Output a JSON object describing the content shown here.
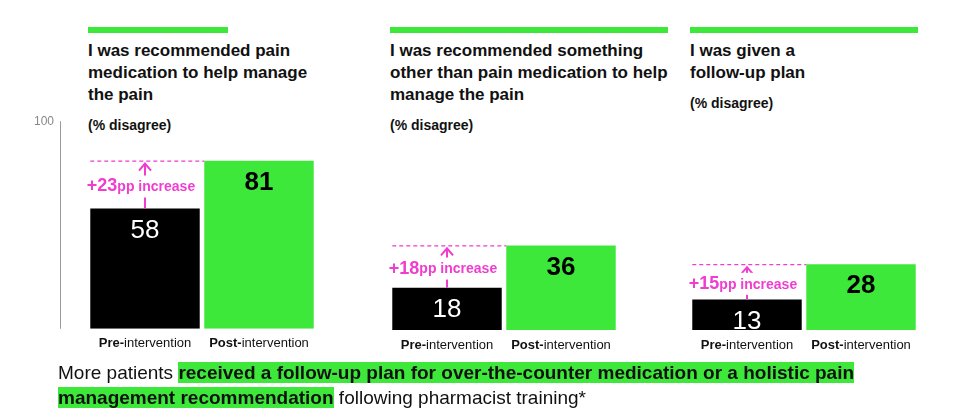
{
  "chart_data": [
    {
      "type": "bar",
      "title": "I was recommended pain medication to help manage the pain",
      "subtitle": "(% disagree)",
      "categories": [
        "Pre-intervention",
        "Post-intervention"
      ],
      "values": [
        58,
        81
      ],
      "colors": [
        "#000000",
        "#3ee83a"
      ],
      "ylim": [
        0,
        100
      ],
      "yticks": [
        100
      ],
      "grid": false,
      "data_labels": true,
      "annotations": [
        "+23pp increase"
      ]
    },
    {
      "type": "bar",
      "title": "I was recommended something other than pain medication to help manage the pain",
      "subtitle": "(% disagree)",
      "categories": [
        "Pre-intervention",
        "Post-intervention"
      ],
      "values": [
        18,
        36
      ],
      "colors": [
        "#000000",
        "#3ee83a"
      ],
      "ylim": [
        0,
        100
      ],
      "yticks": [],
      "grid": false,
      "data_labels": true,
      "tick_labels": "x",
      "annotations": [
        "+18pp increase"
      ]
    },
    {
      "type": "bar",
      "title": "I was given a follow-up plan",
      "subtitle": "(% disagree)",
      "categories": [
        "Pre-intervention",
        "Post-intervention"
      ],
      "values": [
        13,
        28
      ],
      "colors": [
        "#000000",
        "#3ee83a"
      ],
      "ylim": [
        0,
        100
      ],
      "yticks": [],
      "grid": false,
      "data_labels": true,
      "tick_labels": "x",
      "annotations": [
        "+15pp increase"
      ]
    }
  ],
  "footer": [
    {
      "text": "More patients ",
      "highlight": false
    },
    {
      "text": "received a follow-up plan for over-the-counter medication or a holistic pain management recommendation",
      "highlight": true
    },
    {
      "text": " following pharmacist training*",
      "highlight": false
    }
  ]
}
